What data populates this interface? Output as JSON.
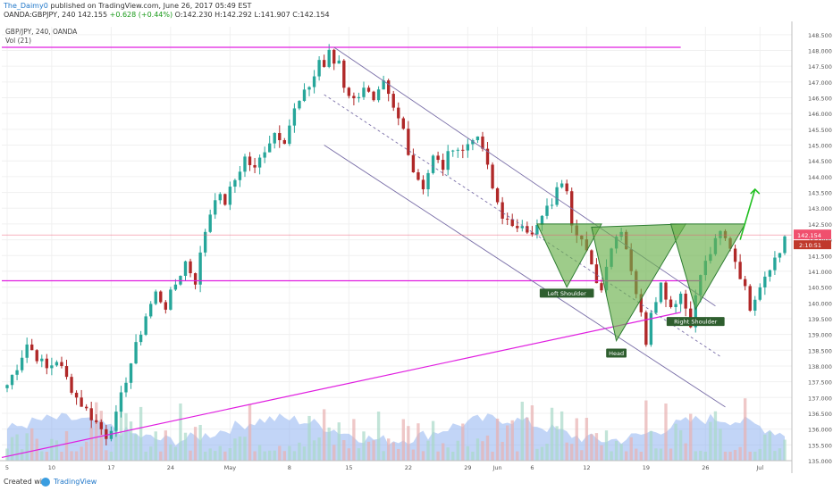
{
  "header": {
    "author": "The_Daimy0",
    "published": "published on TradingView.com, June 26, 2017 05:49 EST",
    "symbol": "OANDA:GBPJPY, 240",
    "price": "142.155",
    "change": "+0.628 (+0.44%)",
    "ohlc": "O:142.230 H:142.292 L:141.907 C:142.154"
  },
  "legend": {
    "title": "GBP/JPY, 240, OANDA",
    "volume": "Vol (21)"
  },
  "footer": {
    "created_with": "Created with",
    "brand": "TradingView"
  },
  "colors": {
    "up": "#26a69a",
    "down": "#b02828",
    "magenta": "#e01ee0",
    "channel": "#7a6fa8",
    "pattern_fill": "#6ab04c",
    "pattern_stroke": "#2e7d32",
    "arrow": "#22c022",
    "last_price": "#f0506e",
    "volume_area": "#8fb2f0"
  },
  "chart_data": {
    "type": "candlestick",
    "symbol": "GBP/JPY",
    "timeframe": "240",
    "yaxis": {
      "ylim": [
        135,
        148.75
      ],
      "ticks": [
        "135.000",
        "135.500",
        "136.000",
        "136.500",
        "137.000",
        "137.500",
        "138.000",
        "138.500",
        "139.000",
        "139.500",
        "140.000",
        "140.500",
        "141.000",
        "141.500",
        "142.000",
        "142.500",
        "143.000",
        "143.500",
        "144.000",
        "144.500",
        "145.000",
        "145.500",
        "146.000",
        "146.500",
        "147.000",
        "147.500",
        "148.000",
        "148.500"
      ]
    },
    "xaxis": {
      "ticks": [
        "5",
        "10",
        "17",
        "24",
        "May",
        "8",
        "15",
        "22",
        "29",
        "Jun",
        "6",
        "12",
        "19",
        "26",
        "Jul"
      ]
    },
    "last_price": "142.154",
    "countdown": "2:10:51",
    "price_path": [
      [
        0,
        137.4
      ],
      [
        2,
        138.0
      ],
      [
        4,
        138.7
      ],
      [
        6,
        138.3
      ],
      [
        8,
        137.9
      ],
      [
        10,
        138.2
      ],
      [
        12,
        137.6
      ],
      [
        14,
        137.0
      ],
      [
        16,
        136.6
      ],
      [
        18,
        136.2
      ],
      [
        20,
        135.8
      ],
      [
        22,
        136.4
      ],
      [
        24,
        137.6
      ],
      [
        26,
        138.6
      ],
      [
        28,
        139.6
      ],
      [
        30,
        140.3
      ],
      [
        32,
        139.9
      ],
      [
        34,
        140.6
      ],
      [
        36,
        141.3
      ],
      [
        38,
        140.7
      ],
      [
        40,
        142.3
      ],
      [
        42,
        143.4
      ],
      [
        44,
        143.2
      ],
      [
        46,
        143.9
      ],
      [
        48,
        144.6
      ],
      [
        50,
        144.2
      ],
      [
        52,
        144.9
      ],
      [
        54,
        145.4
      ],
      [
        56,
        145.2
      ],
      [
        58,
        146.1
      ],
      [
        60,
        146.6
      ],
      [
        62,
        147.2
      ],
      [
        63,
        147.7
      ],
      [
        64,
        147.5
      ],
      [
        65,
        147.9
      ],
      [
        66,
        147.6
      ],
      [
        67,
        147.7
      ],
      [
        68,
        146.9
      ],
      [
        70,
        146.4
      ],
      [
        72,
        146.9
      ],
      [
        74,
        146.3
      ],
      [
        76,
        146.9
      ],
      [
        78,
        146.1
      ],
      [
        80,
        145.5
      ],
      [
        82,
        144.2
      ],
      [
        84,
        143.7
      ],
      [
        86,
        144.6
      ],
      [
        88,
        144.3
      ],
      [
        90,
        145.0
      ],
      [
        92,
        144.8
      ],
      [
        94,
        145.3
      ],
      [
        96,
        144.9
      ],
      [
        98,
        143.6
      ],
      [
        100,
        142.8
      ],
      [
        102,
        142.3
      ],
      [
        104,
        142.6
      ],
      [
        106,
        142.1
      ],
      [
        108,
        142.7
      ],
      [
        110,
        143.2
      ],
      [
        112,
        143.9
      ],
      [
        113,
        143.7
      ],
      [
        114,
        142.6
      ],
      [
        116,
        142.0
      ],
      [
        118,
        141.1
      ],
      [
        120,
        140.4
      ],
      [
        121,
        141.3
      ],
      [
        122,
        141.8
      ],
      [
        124,
        142.4
      ],
      [
        126,
        141.1
      ],
      [
        128,
        139.6
      ],
      [
        129,
        138.8
      ],
      [
        130,
        139.8
      ],
      [
        132,
        140.6
      ],
      [
        134,
        139.9
      ],
      [
        136,
        140.3
      ],
      [
        138,
        139.4
      ],
      [
        140,
        140.9
      ],
      [
        142,
        141.6
      ],
      [
        144,
        142.2
      ],
      [
        146,
        141.8
      ],
      [
        148,
        140.9
      ],
      [
        150,
        139.9
      ],
      [
        152,
        140.6
      ],
      [
        154,
        141.2
      ],
      [
        156,
        141.6
      ],
      [
        157,
        142.15
      ]
    ],
    "volume": {
      "label": "Vol (21)"
    },
    "annotations": [
      {
        "text": "Left Shoulder"
      },
      {
        "text": "Head"
      },
      {
        "text": "Right Shoulder"
      }
    ],
    "horizontal_levels": [
      148.1,
      140.7
    ],
    "grid": true,
    "legend": "top-left"
  }
}
